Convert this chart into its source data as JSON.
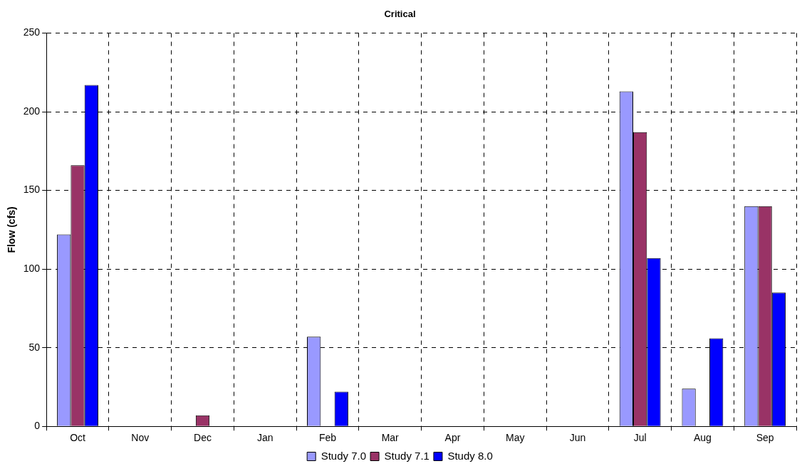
{
  "chart_data": {
    "type": "bar",
    "title": "Critical",
    "ylabel": "Flow (cfs)",
    "categories": [
      "Oct",
      "Nov",
      "Dec",
      "Jan",
      "Feb",
      "Mar",
      "Apr",
      "May",
      "Jun",
      "Jul",
      "Aug",
      "Sep"
    ],
    "series": [
      {
        "name": "Study 7.0",
        "color": "#9999ff",
        "values": [
          122,
          0,
          0,
          0,
          57,
          0,
          0,
          0,
          0,
          213,
          24,
          140
        ]
      },
      {
        "name": "Study 7.1",
        "color": "#993366",
        "values": [
          166,
          0,
          7,
          0,
          0,
          0,
          0,
          0,
          0,
          187,
          0,
          140
        ]
      },
      {
        "name": "Study 8.0",
        "color": "#0000ff",
        "values": [
          217,
          0,
          0,
          0,
          22,
          0,
          0,
          0,
          0,
          107,
          56,
          85
        ]
      }
    ],
    "ylim": [
      0,
      250
    ],
    "yticks": [
      0,
      50,
      100,
      150,
      200,
      250
    ],
    "grid": true,
    "legend": "bottom"
  }
}
